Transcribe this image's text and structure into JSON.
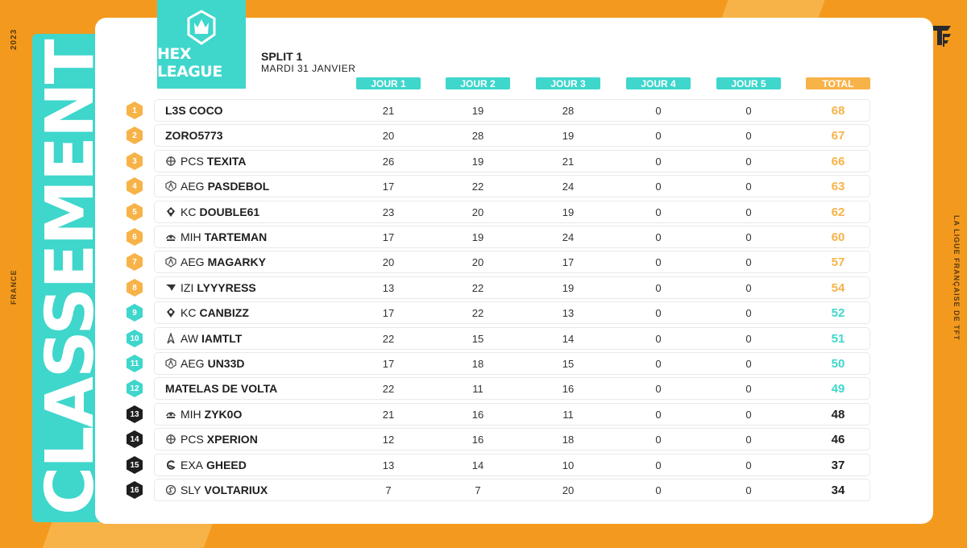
{
  "side": {
    "year": "2023",
    "country": "FRANCE",
    "league_full": "LA LIGUE FRANÇAISE DE TFT",
    "banner": "CLASSEMENT"
  },
  "logo": {
    "title": "HEX LEAGUE"
  },
  "split": {
    "title": "SPLIT 1",
    "date": "MARDI 31 JANVIER"
  },
  "columns": [
    "JOUR 1",
    "JOUR 2",
    "JOUR 3",
    "JOUR 4",
    "JOUR 5",
    "TOTAL"
  ],
  "colors": {
    "orange": "#F39A1E",
    "gold": "#F7B348",
    "teal": "#3FD6CC",
    "dark": "#1e1e1e"
  },
  "rows": [
    {
      "rank": "1",
      "tier": "gold",
      "team": "",
      "team_icon": "",
      "name": "L3S COCO",
      "scores": [
        "21",
        "19",
        "28",
        "0",
        "0"
      ],
      "total": "68"
    },
    {
      "rank": "2",
      "tier": "gold",
      "team": "",
      "team_icon": "",
      "name": "ZORO5773",
      "scores": [
        "20",
        "28",
        "19",
        "0",
        "0"
      ],
      "total": "67"
    },
    {
      "rank": "3",
      "tier": "gold",
      "team": "PCS",
      "team_icon": "pcs-logo-icon",
      "name": "TEXITA",
      "scores": [
        "26",
        "19",
        "21",
        "0",
        "0"
      ],
      "total": "66"
    },
    {
      "rank": "4",
      "tier": "gold",
      "team": "AEG",
      "team_icon": "aeg-logo-icon",
      "name": "PASDEBOL",
      "scores": [
        "17",
        "22",
        "24",
        "0",
        "0"
      ],
      "total": "63"
    },
    {
      "rank": "5",
      "tier": "gold",
      "team": "KC",
      "team_icon": "kc-logo-icon",
      "name": "DOUBLE61",
      "scores": [
        "23",
        "20",
        "19",
        "0",
        "0"
      ],
      "total": "62"
    },
    {
      "rank": "6",
      "tier": "gold",
      "team": "MIH",
      "team_icon": "mih-logo-icon",
      "name": "TARTEMAN",
      "scores": [
        "17",
        "19",
        "24",
        "0",
        "0"
      ],
      "total": "60"
    },
    {
      "rank": "7",
      "tier": "gold",
      "team": "AEG",
      "team_icon": "aeg-logo-icon",
      "name": "MAGARKY",
      "scores": [
        "20",
        "20",
        "17",
        "0",
        "0"
      ],
      "total": "57"
    },
    {
      "rank": "8",
      "tier": "gold",
      "team": "IZI",
      "team_icon": "izi-logo-icon",
      "name": "LYYYRESS",
      "scores": [
        "13",
        "22",
        "19",
        "0",
        "0"
      ],
      "total": "54"
    },
    {
      "rank": "9",
      "tier": "teal",
      "team": "KC",
      "team_icon": "kc-logo-icon",
      "name": "CANBIZZ",
      "scores": [
        "17",
        "22",
        "13",
        "0",
        "0"
      ],
      "total": "52"
    },
    {
      "rank": "10",
      "tier": "teal",
      "team": "AW",
      "team_icon": "aw-logo-icon",
      "name": "IAMTLT",
      "scores": [
        "22",
        "15",
        "14",
        "0",
        "0"
      ],
      "total": "51"
    },
    {
      "rank": "11",
      "tier": "teal",
      "team": "AEG",
      "team_icon": "aeg-logo-icon",
      "name": "UN33D",
      "scores": [
        "17",
        "18",
        "15",
        "0",
        "0"
      ],
      "total": "50"
    },
    {
      "rank": "12",
      "tier": "teal",
      "team": "",
      "team_icon": "",
      "name": "MATELAS DE VOLTA",
      "scores": [
        "22",
        "11",
        "16",
        "0",
        "0"
      ],
      "total": "49"
    },
    {
      "rank": "13",
      "tier": "dark",
      "team": "MIH",
      "team_icon": "mih-logo-icon",
      "name": "ZYK0O",
      "scores": [
        "21",
        "16",
        "11",
        "0",
        "0"
      ],
      "total": "48"
    },
    {
      "rank": "14",
      "tier": "dark",
      "team": "PCS",
      "team_icon": "pcs-logo-icon",
      "name": "XPERION",
      "scores": [
        "12",
        "16",
        "18",
        "0",
        "0"
      ],
      "total": "46"
    },
    {
      "rank": "15",
      "tier": "dark",
      "team": "EXA",
      "team_icon": "exa-logo-icon",
      "name": "GHEED",
      "scores": [
        "13",
        "14",
        "10",
        "0",
        "0"
      ],
      "total": "37"
    },
    {
      "rank": "16",
      "tier": "dark",
      "team": "SLY",
      "team_icon": "sly-logo-icon",
      "name": "VOLTARIUX",
      "scores": [
        "7",
        "7",
        "20",
        "0",
        "0"
      ],
      "total": "34"
    }
  ]
}
